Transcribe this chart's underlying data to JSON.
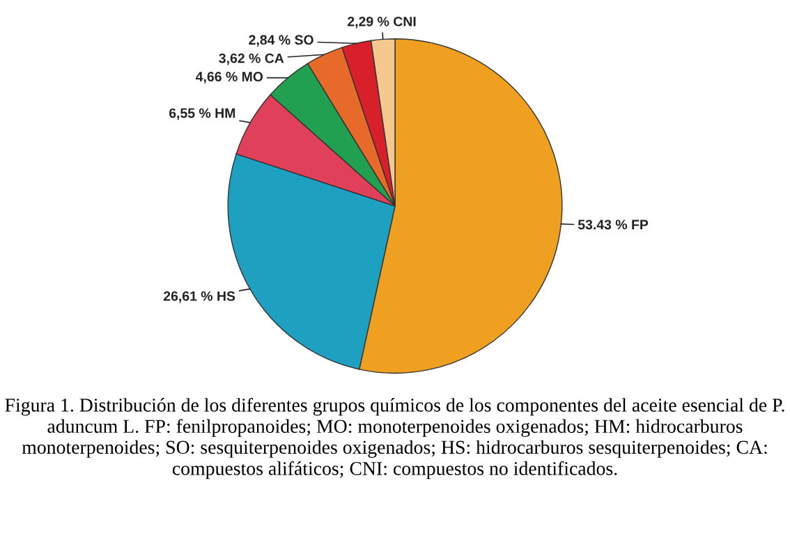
{
  "chart_data": {
    "type": "pie",
    "categories": [
      "FP",
      "HS",
      "HM",
      "MO",
      "CA",
      "SO",
      "CNI"
    ],
    "values": [
      53.43,
      26.61,
      6.55,
      4.66,
      3.62,
      2.84,
      2.29
    ],
    "value_labels": [
      "53.43 %",
      "26,61 %",
      "6,55 %",
      "4,66 %",
      "3,62 %",
      "2,84 %",
      "2,29 %"
    ],
    "colors": [
      "#f0a020",
      "#1ea0c0",
      "#e0405a",
      "#20a050",
      "#e86a2a",
      "#d8202a",
      "#f5c890"
    ],
    "legend": false,
    "annotations": [
      "Figura 1. Distribución de los diferentes grupos químicos de los componentes del aceite esencial de P. aduncum L. FP: fenilpropanoides; MO: monoterpenoides oxigenados; HM: hidrocarburos monoterpenoides; SO: sesquiterpenoides oxigenados; HS: hidrocarburos sesquiterpenoides; CA: compuestos alifáticos; CNI: compuestos no identificados."
    ]
  }
}
